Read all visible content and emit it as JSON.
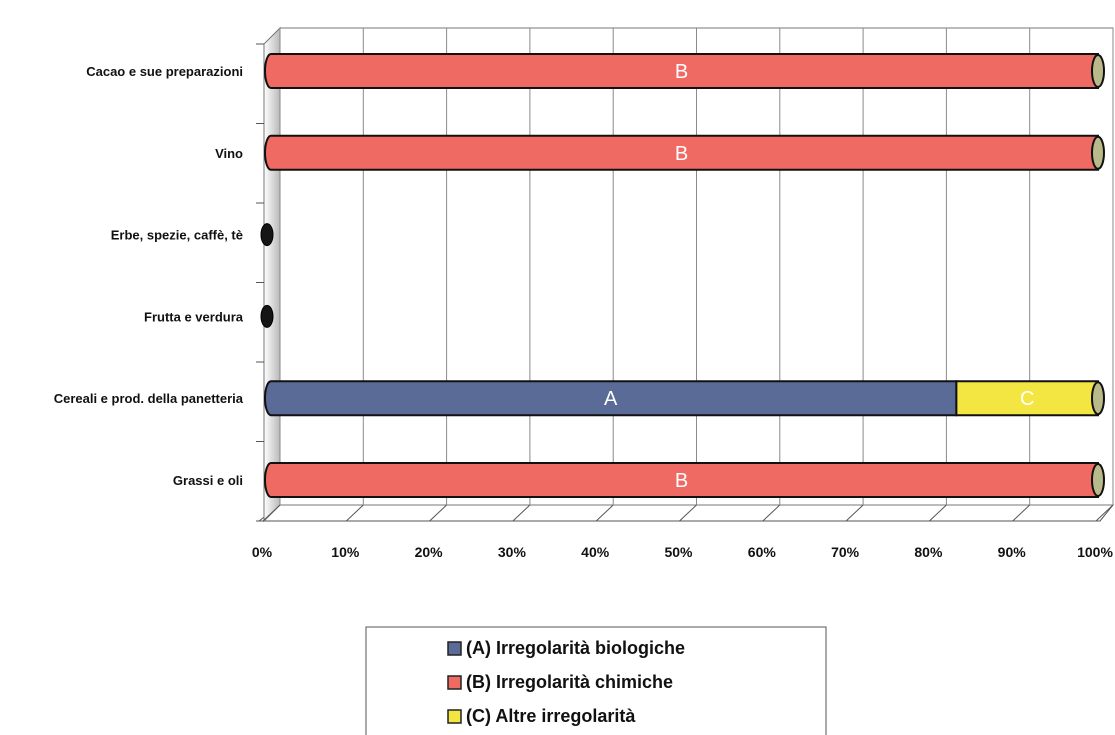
{
  "chart_data": {
    "type": "bar",
    "orientation": "horizontal",
    "stacked": "percent",
    "title": "",
    "xlabel": "",
    "ylabel": "",
    "categories": [
      "Cacao e sue preparazioni",
      "Vino",
      "Erbe, spezie, caffè, tè",
      "Frutta e verdura",
      "Cereali e prod. della panetteria",
      "Grassi e oli"
    ],
    "series": [
      {
        "key": "A",
        "name": "(A) Irregolarità biologiche",
        "color": "#5b6b97",
        "values": [
          0,
          0,
          0,
          0,
          83,
          0
        ]
      },
      {
        "key": "B",
        "name": "(B) Irregolarità chimiche",
        "color": "#f06a64",
        "values": [
          100,
          100,
          0,
          0,
          0,
          100
        ]
      },
      {
        "key": "C",
        "name": "(C) Altre irregolarità",
        "color": "#f4e642",
        "values": [
          0,
          0,
          0,
          0,
          17,
          0
        ]
      }
    ],
    "xlim": [
      0,
      100
    ],
    "x_ticks": [
      "0%",
      "10%",
      "20%",
      "30%",
      "40%",
      "50%",
      "60%",
      "70%",
      "80%",
      "90%",
      "100%"
    ],
    "grid": true,
    "legend_position": "bottom-center"
  }
}
